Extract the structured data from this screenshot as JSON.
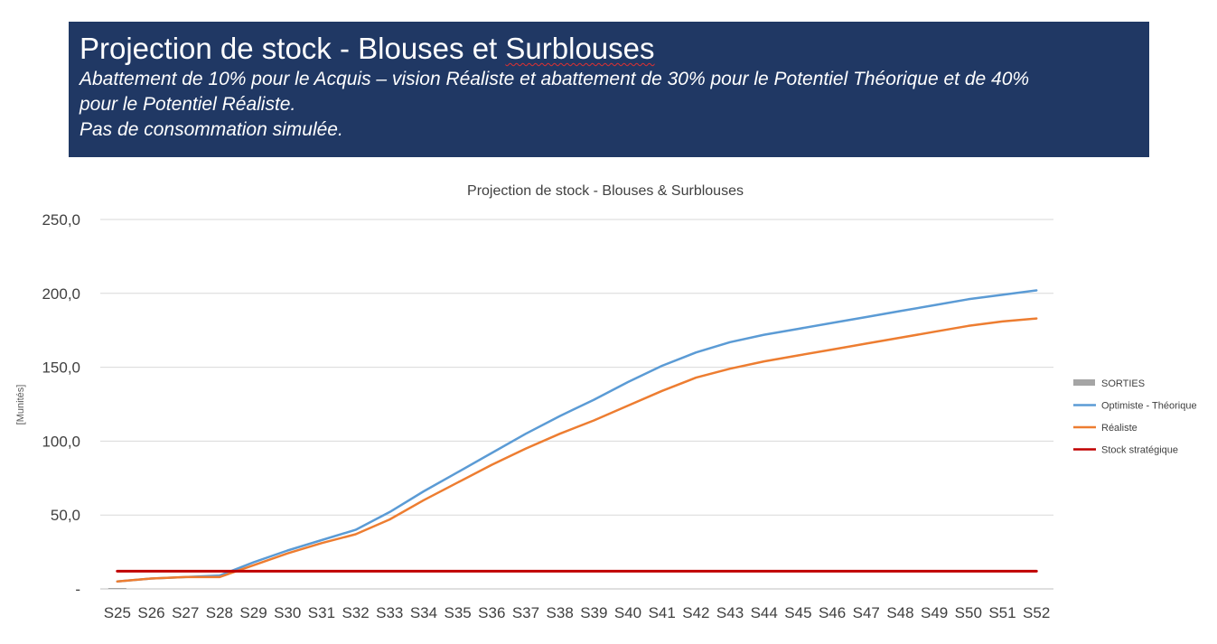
{
  "banner": {
    "title_prefix": "Projection de stock -  Blouses et ",
    "title_underlined": "Surblouses",
    "subtitle_line1": "Abattement de 10% pour le Acquis – vision Réaliste et abattement de 30% pour le Potentiel Théorique et de 40%",
    "subtitle_line2": "pour le Potentiel Réaliste.",
    "subtitle_line3": "Pas de consommation simulée."
  },
  "chart_data": {
    "type": "line",
    "title": "Projection de stock - Blouses & Surblouses",
    "ylabel": "[Munités]",
    "xlabel": "",
    "ylim": [
      0,
      250
    ],
    "yticks": [
      {
        "value": 0,
        "label": "-"
      },
      {
        "value": 50,
        "label": "50,0"
      },
      {
        "value": 100,
        "label": "100,0"
      },
      {
        "value": 150,
        "label": "150,0"
      },
      {
        "value": 200,
        "label": "200,0"
      },
      {
        "value": 250,
        "label": "250,0"
      }
    ],
    "grid": true,
    "legend_position": "right",
    "categories": [
      "S25",
      "S26",
      "S27",
      "S28",
      "S29",
      "S30",
      "S31",
      "S32",
      "S33",
      "S34",
      "S35",
      "S36",
      "S37",
      "S38",
      "S39",
      "S40",
      "S41",
      "S42",
      "S43",
      "S44",
      "S45",
      "S46",
      "S47",
      "S48",
      "S49",
      "S50",
      "S51",
      "S52"
    ],
    "series": [
      {
        "name": "SORTIES",
        "kind": "bar",
        "color": "#a5a5a5",
        "values": [
          0.3,
          0,
          0,
          0,
          0,
          0,
          0,
          0,
          0,
          0,
          0,
          0,
          0,
          0,
          0,
          0,
          0,
          0,
          0,
          0,
          0,
          0,
          0,
          0,
          0,
          0,
          0,
          0
        ]
      },
      {
        "name": "Optimiste - Théorique",
        "kind": "line",
        "color": "#5b9bd5",
        "values": [
          5,
          7,
          8,
          9,
          18,
          26,
          33,
          40,
          52,
          66,
          79,
          92,
          105,
          117,
          128,
          140,
          151,
          160,
          167,
          172,
          176,
          180,
          184,
          188,
          192,
          196,
          199,
          202
        ]
      },
      {
        "name": "Réaliste",
        "kind": "line",
        "color": "#ed7d31",
        "values": [
          5,
          7,
          8,
          8,
          16,
          24,
          31,
          37,
          47,
          60,
          72,
          84,
          95,
          105,
          114,
          124,
          134,
          143,
          149,
          154,
          158,
          162,
          166,
          170,
          174,
          178,
          181,
          183
        ]
      },
      {
        "name": "Stock stratégique",
        "kind": "line",
        "color": "#c00000",
        "values": [
          12,
          12,
          12,
          12,
          12,
          12,
          12,
          12,
          12,
          12,
          12,
          12,
          12,
          12,
          12,
          12,
          12,
          12,
          12,
          12,
          12,
          12,
          12,
          12,
          12,
          12,
          12,
          12
        ]
      }
    ]
  }
}
